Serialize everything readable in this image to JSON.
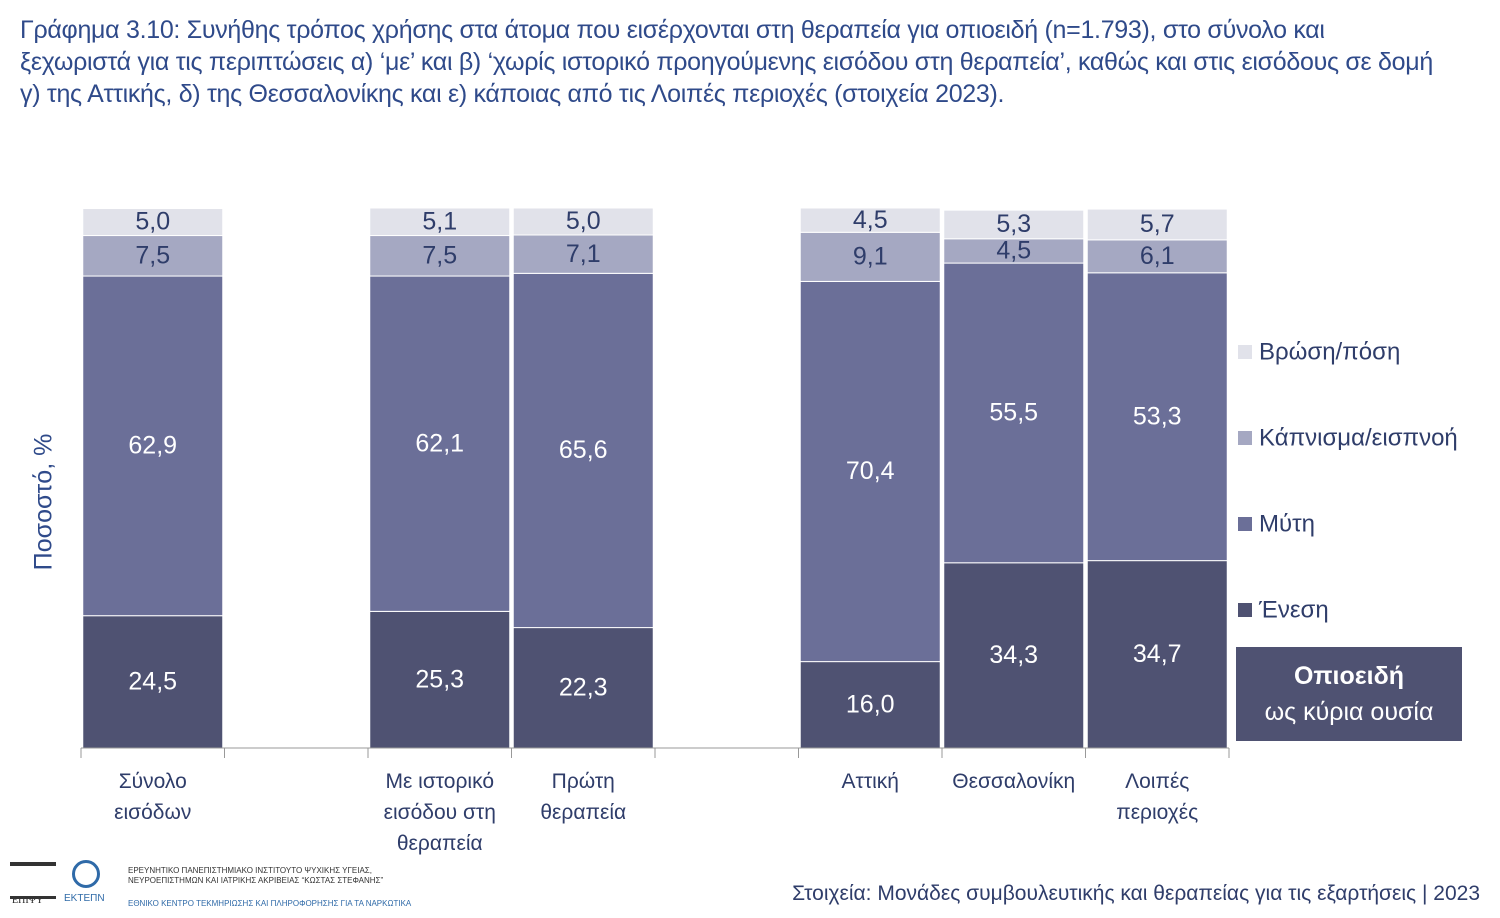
{
  "chart_data": {
    "type": "stacked_bar",
    "title": "Γράφημα 3.10: Συνήθης τρόπος χρήσης στα άτομα που εισέρχονται στη θεραπεία για οπιοειδή (n=1.793), στο σύνολο και ξεχωριστά για τις περιπτώσεις α) ‘με’ και β) ‘χωρίς ιστορικό προηγούμενης εισόδου στη θεραπεία’, καθώς και στις εισόδους σε δομή γ) της Αττικής, δ) της Θεσσαλονίκης και ε) κάποιας από τις Λοιπές περιοχές (στοιχεία 2023).",
    "y_label": "Ποσοστό, %",
    "categories": [
      "Σύνολο εισόδων",
      null,
      "Με ιστορικό εισόδου στη θεραπεία",
      "Πρώτη θεραπεία",
      null,
      "Αττική",
      "Θεσσαλονίκη",
      "Λοιπές περιοχές"
    ],
    "ylim": [
      0,
      100
    ],
    "series": [
      {
        "name": "Ένεση",
        "color": "#4f5272",
        "label_color": "#ffffff",
        "values": [
          24.5,
          null,
          25.3,
          22.3,
          null,
          16.0,
          34.3,
          34.7
        ],
        "value_labels": [
          "24,5",
          null,
          "25,3",
          "22,3",
          null,
          "16,0",
          "34,3",
          "34,7"
        ]
      },
      {
        "name": "Μύτη",
        "color": "#6b6f98",
        "label_color": "#ffffff",
        "values": [
          62.9,
          null,
          62.1,
          65.6,
          null,
          70.4,
          55.5,
          53.3
        ],
        "value_labels": [
          "62,9",
          null,
          "62,1",
          "65,6",
          null,
          "70,4",
          "55,5",
          "53,3"
        ]
      },
      {
        "name": "Κάπνισμα/εισπνοή",
        "color": "#a5a8c2",
        "label_color": "#2f3d6a",
        "values": [
          7.5,
          null,
          7.5,
          7.1,
          null,
          9.1,
          4.5,
          6.1
        ],
        "value_labels": [
          "7,5",
          null,
          "7,5",
          "7,1",
          null,
          "9,1",
          "4,5",
          "6,1"
        ]
      },
      {
        "name": "Βρώση/πόση",
        "color": "#e1e2ea",
        "label_color": "#2f3d6a",
        "values": [
          5.0,
          null,
          5.1,
          5.0,
          null,
          4.5,
          5.3,
          5.7
        ],
        "value_labels": [
          "5,0",
          null,
          "5,1",
          "5,0",
          null,
          "4,5",
          "5,3",
          "5,7"
        ]
      }
    ],
    "legend_position": "right",
    "box_title": "Οπιοειδή",
    "box_subtitle": "ως κύρια ουσία"
  },
  "footer": {
    "logo1": "ΕΠΙΨΥ",
    "logo2": "ΕΚΤΕΠΝ",
    "institute": "ΕΡΕΥΝΗΤΙΚΟ ΠΑΝΕΠΙΣΤΗΜΙΑΚΟ ΙΝΣΤΙΤΟΥΤΟ ΨΥΧΙΚΗΣ ΥΓΕΙΑΣ, ΝΕΥΡΟΕΠΙΣΤΗΜΩΝ ΚΑΙ ΙΑΤΡΙΚΗΣ ΑΚΡΙΒΕΙΑΣ “ΚΩΣΤΑΣ ΣΤΕΦΑΝΗΣ”",
    "centre": "ΕΘΝΙΚΟ ΚΕΝΤΡΟ ΤΕΚΜΗΡΙΩΣΗΣ ΚΑΙ ΠΛΗΡΟΦΟΡΗΣΗΣ ΓΙΑ ΤΑ ΝΑΡΚΩΤΙΚΑ",
    "source": "Στοιχεία: Μονάδες συμβουλευτικής και θεραπείας για τις εξαρτήσεις | 2023"
  }
}
